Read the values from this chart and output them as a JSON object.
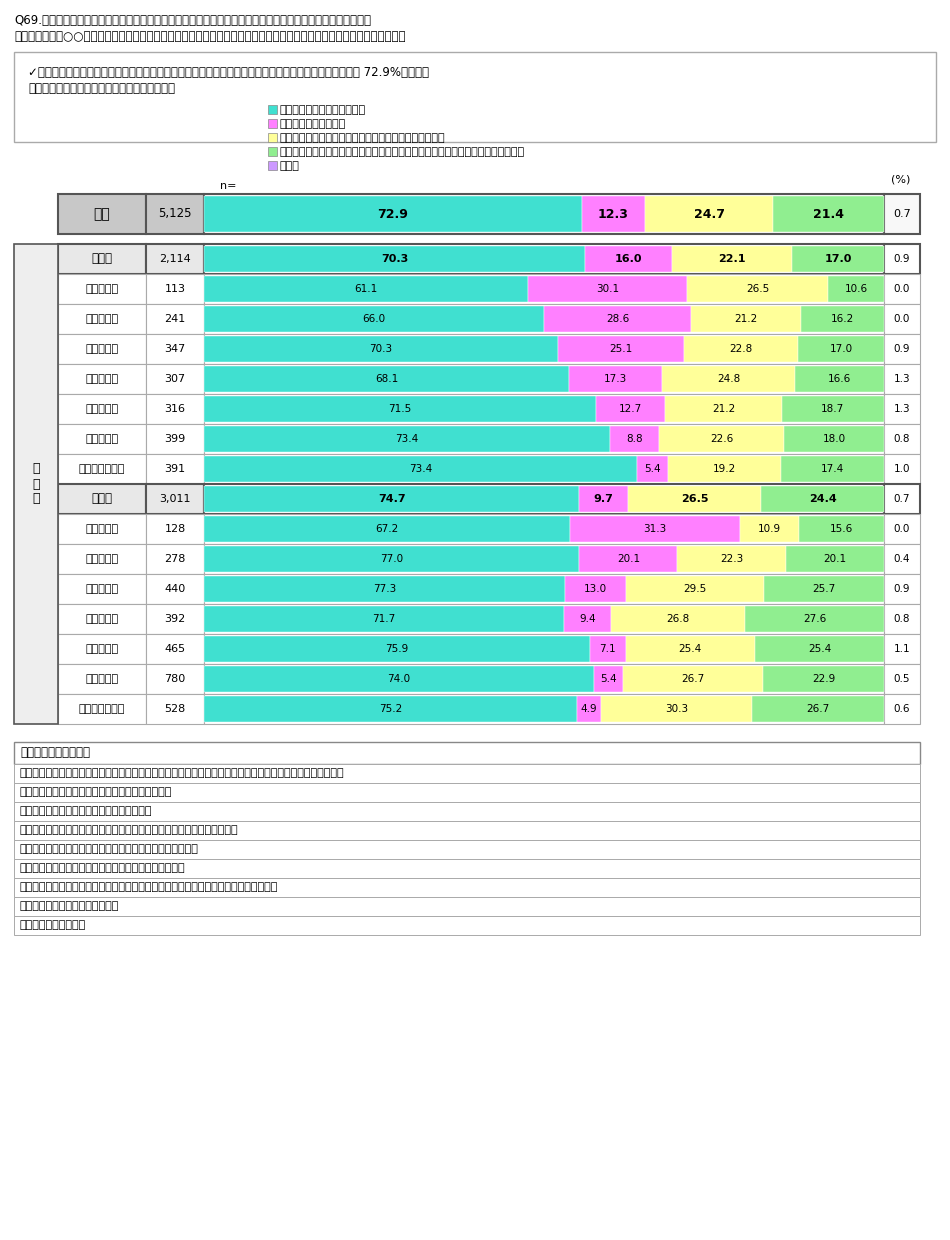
{
  "title_line1": "Q69.（購入時の商品選択の際、「無添加」等の「表示がある食品を購入している」という方にお伺いします）",
  "title_line2": "　　あなたが「○○を使用していない」、「無添加」の表示がある食品を購入する理由をお教えください。（いくつでも）",
  "summary_line1": "✓　商品選択時に表示がある商品を購入している者の理由としては、「安全で健康に良さそうなため」が 72.9%と最も多",
  "summary_line2": "く、男女を問わず全ての世代で同様であった。",
  "legend_items": [
    {
      "label": "安全で健康に良さそうなため",
      "color": "#40E0D0"
    },
    {
      "label": "美味しそうであるため",
      "color": "#FF80FF"
    },
    {
      "label": "合成や人工という表示があると購入を避けてしまうため",
      "color": "#FFFF99"
    },
    {
      "label": "特に理由はないが、何となく含まれる添加物が少なそうな食品を購入しているため",
      "color": "#90EE90"
    },
    {
      "label": "その他",
      "color": "#CC99FF"
    }
  ],
  "rows": [
    {
      "label": "全体",
      "n": "5,125",
      "v1": 72.9,
      "v2": 12.3,
      "v3": 24.7,
      "v4": 21.4,
      "v5": 0.7,
      "is_total": true
    },
    {
      "label": "男性計",
      "n": "2,114",
      "v1": 70.3,
      "v2": 16.0,
      "v3": 22.1,
      "v4": 17.0,
      "v5": 0.9,
      "is_subtotal": true
    },
    {
      "label": "男性１０代",
      "n": "113",
      "v1": 61.1,
      "v2": 30.1,
      "v3": 26.5,
      "v4": 10.6,
      "v5": 0.0
    },
    {
      "label": "男性２０代",
      "n": "241",
      "v1": 66.0,
      "v2": 28.6,
      "v3": 21.2,
      "v4": 16.2,
      "v5": 0.0
    },
    {
      "label": "男性３０代",
      "n": "347",
      "v1": 70.3,
      "v2": 25.1,
      "v3": 22.8,
      "v4": 17.0,
      "v5": 0.9
    },
    {
      "label": "男性４０代",
      "n": "307",
      "v1": 68.1,
      "v2": 17.3,
      "v3": 24.8,
      "v4": 16.6,
      "v5": 1.3
    },
    {
      "label": "男性５０代",
      "n": "316",
      "v1": 71.5,
      "v2": 12.7,
      "v3": 21.2,
      "v4": 18.7,
      "v5": 1.3
    },
    {
      "label": "男性６０代",
      "n": "399",
      "v1": 73.4,
      "v2": 8.8,
      "v3": 22.6,
      "v4": 18.0,
      "v5": 0.8
    },
    {
      "label": "男性７０代以上",
      "n": "391",
      "v1": 73.4,
      "v2": 5.4,
      "v3": 19.2,
      "v4": 17.4,
      "v5": 1.0
    },
    {
      "label": "女性計",
      "n": "3,011",
      "v1": 74.7,
      "v2": 9.7,
      "v3": 26.5,
      "v4": 24.4,
      "v5": 0.7,
      "is_subtotal": true
    },
    {
      "label": "女性１０代",
      "n": "128",
      "v1": 67.2,
      "v2": 31.3,
      "v3": 10.9,
      "v4": 15.6,
      "v5": 0.0
    },
    {
      "label": "女性２０代",
      "n": "278",
      "v1": 77.0,
      "v2": 20.1,
      "v3": 22.3,
      "v4": 20.1,
      "v5": 0.4
    },
    {
      "label": "女性３０代",
      "n": "440",
      "v1": 77.3,
      "v2": 13.0,
      "v3": 29.5,
      "v4": 25.7,
      "v5": 0.9
    },
    {
      "label": "女性４０代",
      "n": "392",
      "v1": 71.7,
      "v2": 9.4,
      "v3": 26.8,
      "v4": 27.6,
      "v5": 0.8
    },
    {
      "label": "女性５０代",
      "n": "465",
      "v1": 75.9,
      "v2": 7.1,
      "v3": 25.4,
      "v4": 25.4,
      "v5": 1.1
    },
    {
      "label": "女性６０代",
      "n": "780",
      "v1": 74.0,
      "v2": 5.4,
      "v3": 26.7,
      "v4": 22.9,
      "v5": 0.5
    },
    {
      "label": "女性７０代以上",
      "n": "528",
      "v1": 75.2,
      "v2": 4.9,
      "v3": 30.3,
      "v4": 26.7,
      "v5": 0.6
    }
  ],
  "gender_age_label": "性\n年\n代",
  "bottom_box_title": "「その他」の主な回答",
  "bottom_box_lines": [
    "添加物を使わないだけにこだわりがあって調理していると思うので、美味しいのではないかと期待があるから",
    "発ガン性があるから　／発ガン物質は避けたいから",
    "添加物は身体に良くないイメージがあるから",
    "子供がまだ小さいから　／子供の食事はなるべく添加物を避けているから",
    "アレルギーを持っているから　／アナフィラキシー症状防止",
    "家族の持病で摄取しない方が良い食品添加物があるから",
    "無添加といえ何かしら混入していると思うので、表示されているものがまだマシだから",
    "摂らないに越したことはないから",
    "高級そうに感じるから"
  ],
  "colors": {
    "cyan": "#40E0D0",
    "pink": "#FF80FF",
    "yellow": "#FFFF99",
    "green": "#90EE90",
    "purple": "#CC99FF",
    "header_bg": "#C8C8C8",
    "subtotal_bg": "#E8E8E8",
    "row_bg": "#FFFFFF",
    "border_dark": "#555555",
    "border_light": "#AAAAAA"
  }
}
